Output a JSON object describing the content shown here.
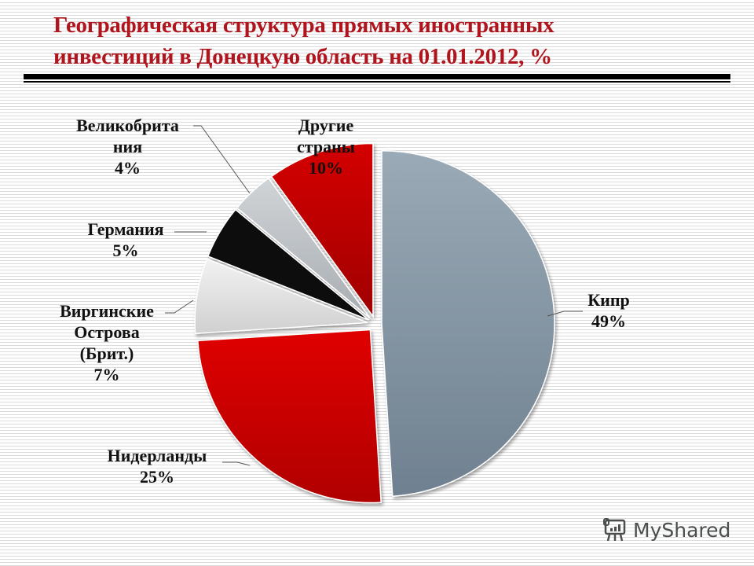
{
  "title": {
    "line1": "Географическая структура прямых иностранных",
    "line2": "инвестиций в Донецкую область на 01.01.2012, %"
  },
  "labels": {
    "cyprus": {
      "name": "Кипр",
      "pct": "49%"
    },
    "netherlands": {
      "name": "Нидерланды",
      "pct": "25%"
    },
    "bvi": {
      "line1": "Виргинские",
      "line2": "Острова",
      "line3": "(Брит.)",
      "pct": "7%"
    },
    "germany": {
      "name": "Германия",
      "pct": "5%"
    },
    "uk": {
      "line1": "Великобрита",
      "line2": "ния",
      "pct": "4%"
    },
    "other": {
      "line1": "Другие",
      "line2": "страны",
      "pct": "10%"
    }
  },
  "watermark": {
    "text": "MyShared"
  },
  "colors": {
    "title": "#b0141c",
    "cyprus": "#8a9aa8",
    "netherlands": "#d40000",
    "bvi": "#e4e4e4",
    "germany": "#0a0a0a",
    "uk": "#c2c6c9",
    "other": "#c80000"
  },
  "chart_data": {
    "type": "pie",
    "title": "Географическая структура прямых иностранных инвестиций в Донецкую область на 01.01.2012, %",
    "categories": [
      "Кипр",
      "Нидерланды",
      "Виргинские Острова (Брит.)",
      "Германия",
      "Великобритания",
      "Другие страны"
    ],
    "values": [
      49,
      25,
      7,
      5,
      4,
      10
    ],
    "unit": "%",
    "exploded": true,
    "start_angle": "12 o'clock, clockwise",
    "legend": "data labels with leader lines"
  }
}
